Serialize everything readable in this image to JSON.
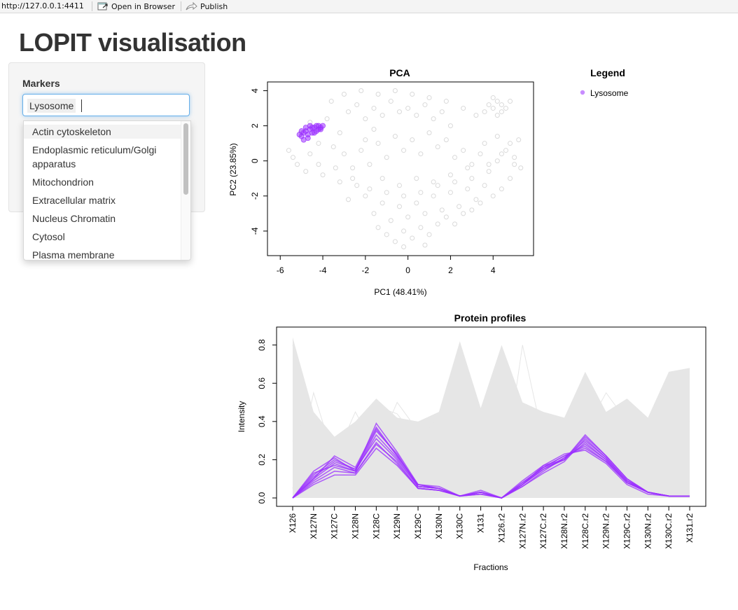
{
  "browser": {
    "url": "http://127.0.0.1:4411",
    "open_in_browser": "Open in Browser",
    "publish": "Publish"
  },
  "app": {
    "title": "LOPIT visualisation"
  },
  "sidebar": {
    "markers_label": "Markers",
    "selected_chip": "Lysosome",
    "options": [
      "Actin cytoskeleton",
      "Endoplasmic reticulum/Golgi",
      "apparatus",
      "Mitochondrion",
      "Extracellular matrix",
      "Nucleus Chromatin",
      "Cytosol",
      "Plasma membrane"
    ]
  },
  "colors": {
    "highlight": "#9b30ff",
    "background_points": "#d9d9d9",
    "focus_border": "#66afe9"
  },
  "legend": {
    "title": "Legend",
    "items": [
      "Lysosome"
    ]
  },
  "chart_data": [
    {
      "type": "scatter",
      "title": "PCA",
      "xlabel": "PC1 (48.41%)",
      "ylabel": "PC2 (23.85%)",
      "xlim": [
        -6.6,
        5.9
      ],
      "ylim": [
        -5.4,
        4.5
      ],
      "xticks": [
        "-6",
        "-4",
        "-2",
        "0",
        "2",
        "4"
      ],
      "yticks": [
        "-4",
        "-2",
        "0",
        "2",
        "4"
      ],
      "grid": false,
      "series": [
        {
          "name": "",
          "color": "#d9d9d9",
          "description_points": [],
          "points": [
            [
              -5.0,
              1.6
            ],
            [
              -4.6,
              2.2
            ],
            [
              -4.2,
              1.0
            ],
            [
              -3.8,
              2.4
            ],
            [
              -3.5,
              0.8
            ],
            [
              -5.4,
              0.2
            ],
            [
              -4.8,
              -0.6
            ],
            [
              -4.2,
              -0.2
            ],
            [
              -3.2,
              1.6
            ],
            [
              -2.8,
              2.8
            ],
            [
              -2.4,
              3.2
            ],
            [
              -2.0,
              2.4
            ],
            [
              -1.6,
              3.0
            ],
            [
              -1.2,
              2.6
            ],
            [
              -0.8,
              3.4
            ],
            [
              -0.4,
              2.8
            ],
            [
              0.0,
              3.0
            ],
            [
              0.4,
              2.6
            ],
            [
              0.8,
              3.2
            ],
            [
              1.2,
              2.4
            ],
            [
              1.6,
              2.8
            ],
            [
              2.0,
              2.0
            ],
            [
              -3.0,
              0.4
            ],
            [
              -2.6,
              -0.4
            ],
            [
              -2.2,
              0.6
            ],
            [
              -1.8,
              -0.2
            ],
            [
              -1.4,
              1.0
            ],
            [
              -1.0,
              0.2
            ],
            [
              -0.6,
              1.4
            ],
            [
              -0.2,
              0.6
            ],
            [
              0.2,
              1.2
            ],
            [
              0.6,
              0.4
            ],
            [
              1.0,
              1.6
            ],
            [
              1.4,
              0.8
            ],
            [
              1.8,
              1.2
            ],
            [
              2.2,
              0.2
            ],
            [
              2.6,
              0.6
            ],
            [
              3.0,
              -0.2
            ],
            [
              3.4,
              0.4
            ],
            [
              3.8,
              -0.6
            ],
            [
              4.2,
              0.0
            ],
            [
              4.6,
              0.6
            ],
            [
              5.0,
              0.2
            ],
            [
              5.3,
              -0.4
            ],
            [
              4.8,
              -1.0
            ],
            [
              4.4,
              -1.6
            ],
            [
              4.0,
              -2.0
            ],
            [
              3.6,
              -1.4
            ],
            [
              3.2,
              -2.2
            ],
            [
              2.8,
              -1.6
            ],
            [
              2.4,
              -2.6
            ],
            [
              2.0,
              -1.8
            ],
            [
              1.6,
              -2.8
            ],
            [
              1.2,
              -2.0
            ],
            [
              0.8,
              -3.0
            ],
            [
              0.4,
              -2.4
            ],
            [
              0.0,
              -3.2
            ],
            [
              -0.4,
              -2.6
            ],
            [
              -0.8,
              -3.4
            ],
            [
              -1.2,
              -2.4
            ],
            [
              -1.6,
              -3.0
            ],
            [
              -2.0,
              -2.0
            ],
            [
              -2.4,
              -1.4
            ],
            [
              -2.8,
              -2.2
            ],
            [
              -3.2,
              -1.2
            ],
            [
              -1.0,
              -4.2
            ],
            [
              -0.6,
              -4.6
            ],
            [
              -0.2,
              -4.0
            ],
            [
              0.2,
              -4.4
            ],
            [
              0.6,
              -3.8
            ],
            [
              1.0,
              -4.2
            ],
            [
              -1.4,
              -3.8
            ],
            [
              0.8,
              -4.8
            ],
            [
              -0.2,
              -4.9
            ],
            [
              1.4,
              -3.6
            ],
            [
              1.8,
              -3.2
            ],
            [
              2.2,
              -3.6
            ],
            [
              2.6,
              -3.0
            ],
            [
              3.0,
              -2.8
            ],
            [
              3.4,
              -2.4
            ],
            [
              4.0,
              3.0
            ],
            [
              4.2,
              3.4
            ],
            [
              4.4,
              2.8
            ],
            [
              3.8,
              3.2
            ],
            [
              4.6,
              3.0
            ],
            [
              4.2,
              2.6
            ],
            [
              3.6,
              2.8
            ],
            [
              4.8,
              3.4
            ],
            [
              4.0,
              3.6
            ],
            [
              4.4,
              3.2
            ],
            [
              -1.6,
              1.8
            ],
            [
              -2.0,
              1.2
            ],
            [
              -1.2,
              -1.0
            ],
            [
              -0.4,
              -1.4
            ],
            [
              0.4,
              -1.0
            ],
            [
              1.2,
              -1.2
            ],
            [
              2.0,
              -0.8
            ],
            [
              2.8,
              -0.4
            ],
            [
              3.6,
              1.0
            ],
            [
              4.2,
              1.4
            ],
            [
              4.8,
              1.0
            ],
            [
              5.2,
              1.2
            ],
            [
              -3.6,
              3.4
            ],
            [
              -3.0,
              3.8
            ],
            [
              -2.2,
              4.0
            ],
            [
              -1.4,
              3.8
            ],
            [
              -0.6,
              4.0
            ],
            [
              0.2,
              3.8
            ],
            [
              1.0,
              3.6
            ],
            [
              1.8,
              3.4
            ],
            [
              2.6,
              3.0
            ],
            [
              3.2,
              2.6
            ],
            [
              -5.6,
              0.6
            ],
            [
              -5.2,
              -0.2
            ],
            [
              -4.6,
              0.4
            ],
            [
              -4.0,
              -0.8
            ],
            [
              -3.4,
              -0.4
            ],
            [
              -2.6,
              -1.0
            ],
            [
              -1.8,
              -1.6
            ],
            [
              -1.0,
              -1.8
            ],
            [
              -0.2,
              -2.0
            ],
            [
              0.6,
              -1.8
            ],
            [
              1.4,
              -1.4
            ],
            [
              2.2,
              -1.2
            ],
            [
              3.0,
              -1.0
            ],
            [
              3.8,
              -0.2
            ],
            [
              4.4,
              0.4
            ],
            [
              5.0,
              -0.2
            ]
          ]
        },
        {
          "name": "Lysosome",
          "color": "#9b30ff",
          "points": [
            [
              -5.0,
              1.4
            ],
            [
              -4.9,
              1.6
            ],
            [
              -4.8,
              1.7
            ],
            [
              -4.7,
              1.5
            ],
            [
              -4.6,
              1.8
            ],
            [
              -4.5,
              1.6
            ],
            [
              -4.4,
              1.9
            ],
            [
              -4.3,
              1.7
            ],
            [
              -4.2,
              2.0
            ],
            [
              -4.1,
              1.8
            ],
            [
              -4.0,
              2.0
            ],
            [
              -4.6,
              2.0
            ],
            [
              -4.8,
              1.9
            ],
            [
              -5.1,
              1.5
            ],
            [
              -4.4,
              1.6
            ],
            [
              -4.2,
              1.8
            ],
            [
              -4.7,
              1.3
            ],
            [
              -4.9,
              1.2
            ],
            [
              -4.3,
              2.0
            ],
            [
              -4.5,
              1.9
            ],
            [
              -5.0,
              1.7
            ],
            [
              -4.1,
              1.9
            ]
          ]
        }
      ]
    },
    {
      "type": "line",
      "title": "Protein profiles",
      "xlabel": "Fractions",
      "ylabel": "Intensity",
      "ylim": [
        0.0,
        0.85
      ],
      "yticks": [
        "0.0",
        "0.2",
        "0.4",
        "0.6",
        "0.8"
      ],
      "categories": [
        "X126",
        "X127N",
        "X127C",
        "X128N",
        "X128C",
        "X129N",
        "X129C",
        "X130N",
        "X130C",
        "X131",
        "X126.r2",
        "X127N.r2",
        "X127C.r2",
        "X128N.r2",
        "X128C.r2",
        "X129N.r2",
        "X129C.r2",
        "X130N.r2",
        "X130C.r2",
        "X131.r2"
      ],
      "grid": false,
      "background_envelope": {
        "color": "#e6e6e6",
        "upper": [
          0.84,
          0.45,
          0.32,
          0.4,
          0.52,
          0.42,
          0.4,
          0.45,
          0.82,
          0.47,
          0.8,
          0.5,
          0.45,
          0.42,
          0.66,
          0.45,
          0.52,
          0.42,
          0.66,
          0.68
        ],
        "lower": [
          0.0,
          0.0,
          0.0,
          0.0,
          0.0,
          0.0,
          0.0,
          0.0,
          0.0,
          0.0,
          0.0,
          0.0,
          0.0,
          0.0,
          0.0,
          0.0,
          0.0,
          0.0,
          0.0,
          0.0
        ]
      },
      "series": [
        {
          "name": "",
          "color": "#e6e6e6",
          "values": [
            0.8,
            0.4,
            0.3,
            0.35,
            0.45,
            0.38,
            0.33,
            0.38,
            0.75,
            0.42,
            0.72,
            0.45,
            0.4,
            0.36,
            0.6,
            0.4,
            0.47,
            0.38,
            0.6,
            0.62
          ]
        },
        {
          "name": "",
          "color": "#e6e6e6",
          "values": [
            0.05,
            0.55,
            0.2,
            0.45,
            0.25,
            0.5,
            0.35,
            0.3,
            0.4,
            0.3,
            0.05,
            0.8,
            0.3,
            0.25,
            0.35,
            0.55,
            0.4,
            0.3,
            0.45,
            0.4
          ]
        },
        {
          "name": "",
          "color": "#e6e6e6",
          "values": [
            0.4,
            0.35,
            0.28,
            0.32,
            0.48,
            0.44,
            0.3,
            0.42,
            0.6,
            0.35,
            0.55,
            0.4,
            0.35,
            0.38,
            0.52,
            0.36,
            0.42,
            0.35,
            0.55,
            0.58
          ]
        },
        {
          "name": "",
          "color": "#e6e6e6",
          "values": [
            0.02,
            0.02,
            0.05,
            0.1,
            0.35,
            0.15,
            0.05,
            0.05,
            0.02,
            0.03,
            0.02,
            0.05,
            0.1,
            0.2,
            0.4,
            0.2,
            0.1,
            0.05,
            0.02,
            0.02
          ]
        },
        {
          "name": "",
          "color": "#e6e6e6",
          "values": [
            0.3,
            0.2,
            0.15,
            0.2,
            0.25,
            0.2,
            0.18,
            0.25,
            0.5,
            0.2,
            0.4,
            0.22,
            0.2,
            0.18,
            0.3,
            0.22,
            0.26,
            0.2,
            0.35,
            0.4
          ]
        },
        {
          "name": "Lysosome",
          "color": "#9b30ff",
          "values": [
            0.0,
            0.1,
            0.18,
            0.14,
            0.33,
            0.21,
            0.06,
            0.05,
            0.01,
            0.03,
            0.0,
            0.07,
            0.15,
            0.2,
            0.29,
            0.2,
            0.08,
            0.03,
            0.01,
            0.01
          ]
        },
        {
          "name": "Lysosome",
          "color": "#9b30ff",
          "values": [
            0.0,
            0.12,
            0.2,
            0.15,
            0.36,
            0.22,
            0.07,
            0.05,
            0.01,
            0.03,
            0.0,
            0.06,
            0.14,
            0.21,
            0.3,
            0.21,
            0.09,
            0.03,
            0.01,
            0.01
          ]
        },
        {
          "name": "Lysosome",
          "color": "#9b30ff",
          "values": [
            0.0,
            0.09,
            0.16,
            0.13,
            0.29,
            0.18,
            0.05,
            0.04,
            0.01,
            0.02,
            0.0,
            0.08,
            0.16,
            0.22,
            0.27,
            0.19,
            0.08,
            0.03,
            0.01,
            0.01
          ]
        },
        {
          "name": "Lysosome",
          "color": "#9b30ff",
          "values": [
            0.0,
            0.14,
            0.21,
            0.14,
            0.39,
            0.24,
            0.07,
            0.06,
            0.01,
            0.04,
            0.0,
            0.07,
            0.16,
            0.2,
            0.33,
            0.22,
            0.1,
            0.03,
            0.01,
            0.01
          ]
        },
        {
          "name": "Lysosome",
          "color": "#9b30ff",
          "values": [
            0.0,
            0.07,
            0.12,
            0.12,
            0.26,
            0.17,
            0.05,
            0.04,
            0.01,
            0.03,
            0.0,
            0.09,
            0.17,
            0.23,
            0.25,
            0.18,
            0.07,
            0.02,
            0.01,
            0.01
          ]
        },
        {
          "name": "Lysosome",
          "color": "#9b30ff",
          "values": [
            0.0,
            0.11,
            0.19,
            0.15,
            0.31,
            0.2,
            0.06,
            0.05,
            0.01,
            0.03,
            0.0,
            0.07,
            0.15,
            0.21,
            0.28,
            0.2,
            0.09,
            0.03,
            0.01,
            0.01
          ]
        },
        {
          "name": "Lysosome",
          "color": "#9b30ff",
          "values": [
            0.0,
            0.13,
            0.17,
            0.14,
            0.35,
            0.23,
            0.06,
            0.05,
            0.01,
            0.03,
            0.0,
            0.06,
            0.13,
            0.19,
            0.31,
            0.21,
            0.09,
            0.03,
            0.01,
            0.01
          ]
        },
        {
          "name": "Lysosome",
          "color": "#9b30ff",
          "values": [
            0.0,
            0.08,
            0.14,
            0.13,
            0.28,
            0.19,
            0.05,
            0.04,
            0.01,
            0.02,
            0.0,
            0.08,
            0.16,
            0.22,
            0.26,
            0.19,
            0.08,
            0.03,
            0.01,
            0.01
          ]
        },
        {
          "name": "Lysosome",
          "color": "#9b30ff",
          "values": [
            0.0,
            0.1,
            0.22,
            0.16,
            0.37,
            0.22,
            0.07,
            0.05,
            0.01,
            0.03,
            0.0,
            0.07,
            0.17,
            0.2,
            0.32,
            0.22,
            0.1,
            0.03,
            0.01,
            0.01
          ]
        }
      ]
    }
  ]
}
